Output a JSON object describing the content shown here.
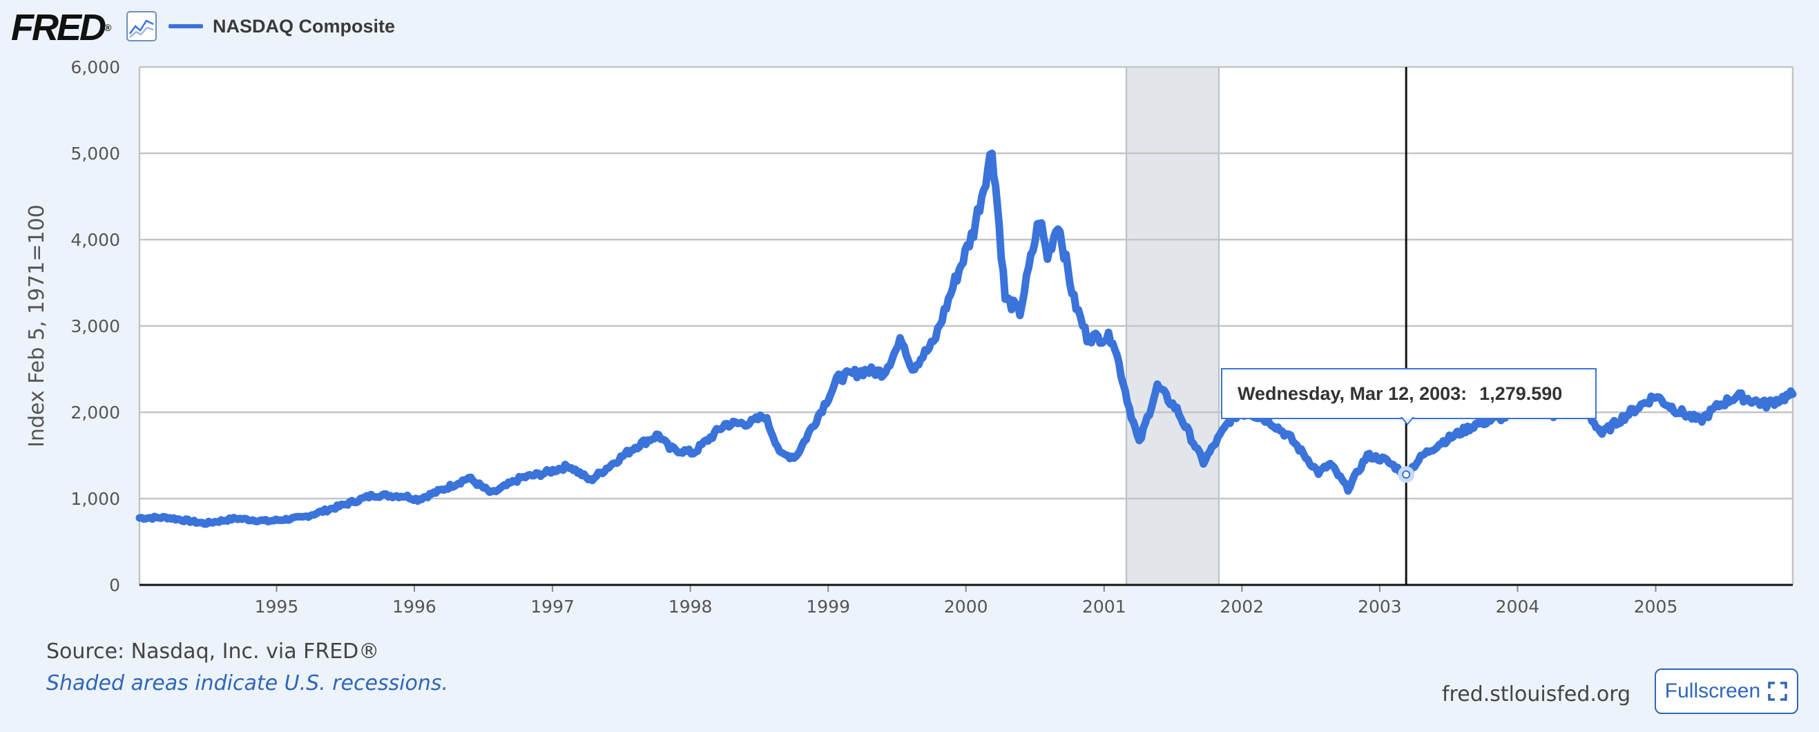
{
  "header": {
    "logo_text": "FRED",
    "logo_mark": "®",
    "graph_icon": "line-graph-icon",
    "legend_label": "NASDAQ Composite"
  },
  "footer": {
    "source": "Source: Nasdaq, Inc. via FRED®",
    "recession_note": "Shaded areas indicate U.S. recessions.",
    "site": "fred.stlouisfed.org",
    "fullscreen_label": "Fullscreen",
    "fullscreen_icon": "fullscreen-icon"
  },
  "tooltip": {
    "date": "Wednesday, Mar 12, 2003:",
    "value": "1,279.590"
  },
  "colors": {
    "series": "#3a73d9",
    "recession": "#e2e6eb",
    "link": "#2f66b9",
    "background": "#edf3fa"
  },
  "chart_data": {
    "type": "line",
    "title": "",
    "xlabel": "",
    "ylabel": "Index Feb 5, 1971=100",
    "xlim": [
      "1994-01-03",
      "2005-12-30"
    ],
    "ylim": [
      0,
      6000
    ],
    "y_ticks": [
      0,
      1000,
      2000,
      3000,
      4000,
      5000,
      6000
    ],
    "y_tick_labels": [
      "0",
      "1,000",
      "2,000",
      "3,000",
      "4,000",
      "5,000",
      "6,000"
    ],
    "x_ticks": [
      "1995",
      "1996",
      "1997",
      "1998",
      "1999",
      "2000",
      "2001",
      "2002",
      "2003",
      "2004",
      "2005"
    ],
    "grid": true,
    "legend": "top-left",
    "recessions": [
      {
        "start": "2001-03-01",
        "end": "2001-11-01"
      }
    ],
    "crosshair_x": "2003-03-12",
    "series": [
      {
        "name": "NASDAQ Composite",
        "x": [
          "1994-01-03",
          "1994-03-18",
          "1994-06-24",
          "1994-09-15",
          "1994-12-09",
          "1995-03-10",
          "1995-06-16",
          "1995-09-14",
          "1995-12-08",
          "1996-01-10",
          "1996-03-14",
          "1996-05-24",
          "1996-07-24",
          "1996-10-10",
          "1996-12-06",
          "1997-02-14",
          "1997-04-11",
          "1997-06-20",
          "1997-08-08",
          "1997-10-09",
          "1997-11-07",
          "1998-01-09",
          "1998-04-03",
          "1998-06-12",
          "1998-07-17",
          "1998-08-31",
          "1998-10-08",
          "1998-12-11",
          "1999-01-29",
          "1999-04-09",
          "1999-05-28",
          "1999-07-16",
          "1999-08-12",
          "1999-10-07",
          "1999-12-03",
          "2000-01-21",
          "2000-03-10",
          "2000-03-24",
          "2000-04-14",
          "2000-05-23",
          "2000-07-14",
          "2000-08-04",
          "2000-09-01",
          "2000-10-13",
          "2000-11-17",
          "2001-01-24",
          "2001-03-09",
          "2001-04-04",
          "2001-05-22",
          "2001-07-13",
          "2001-09-21",
          "2001-12-06",
          "2002-01-18",
          "2002-03-15",
          "2002-05-10",
          "2002-07-23",
          "2002-08-23",
          "2002-10-09",
          "2002-11-29",
          "2003-01-14",
          "2003-03-12",
          "2003-04-25",
          "2003-06-13",
          "2003-09-12",
          "2003-12-05",
          "2004-01-26",
          "2004-03-19",
          "2004-05-10",
          "2004-06-25",
          "2004-08-12",
          "2004-09-24",
          "2004-11-12",
          "2004-12-31",
          "2005-02-18",
          "2005-04-28",
          "2005-06-17",
          "2005-08-05",
          "2005-10-21",
          "2005-12-30"
        ],
        "values": [
          776,
          781,
          712,
          770,
          739,
          780,
          910,
          1040,
          1030,
          990,
          1100,
          1240,
          1060,
          1240,
          1290,
          1380,
          1210,
          1440,
          1600,
          1740,
          1580,
          1530,
          1860,
          1880,
          1960,
          1500,
          1490,
          2000,
          2400,
          2480,
          2460,
          2850,
          2510,
          2800,
          3520,
          4100,
          5040,
          4420,
          3320,
          3160,
          4250,
          3800,
          4200,
          3300,
          2870,
          2860,
          2050,
          1640,
          2300,
          2030,
          1420,
          1950,
          2000,
          1900,
          1700,
          1300,
          1400,
          1114,
          1500,
          1450,
          1279,
          1500,
          1650,
          1860,
          1960,
          2140,
          1960,
          2000,
          2050,
          1750,
          1900,
          2050,
          2190,
          2040,
          1900,
          2080,
          2190,
          2090,
          2210
        ]
      }
    ]
  }
}
